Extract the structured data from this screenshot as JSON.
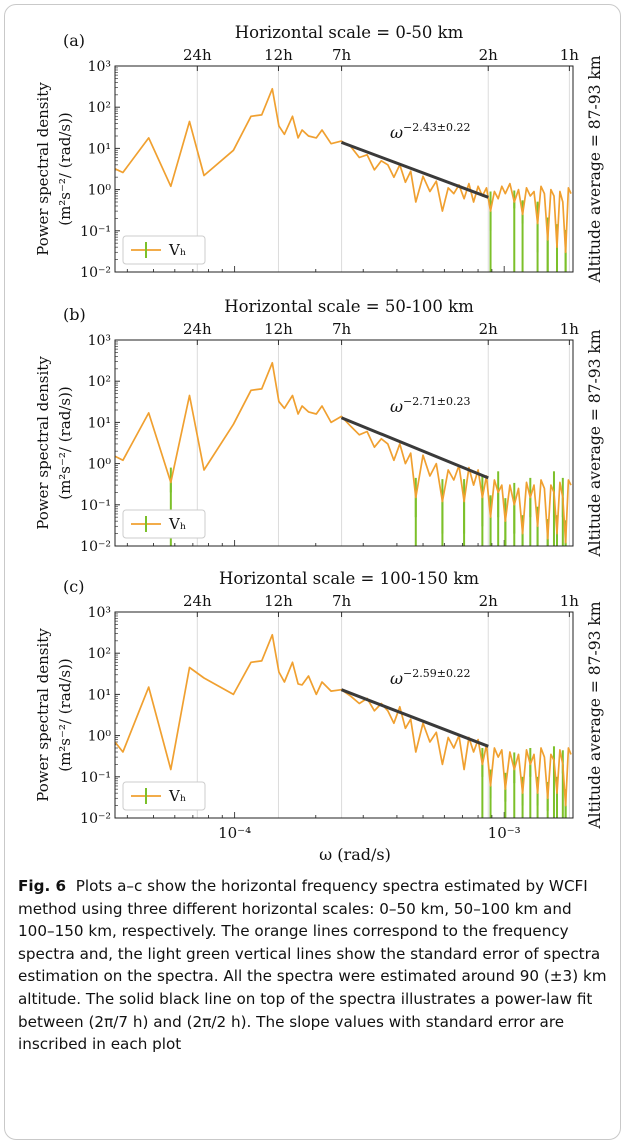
{
  "figure": {
    "caption_label": "Fig. 6",
    "caption_text": "Plots a–c show the horizontal frequency spectra estimated by WCFI method using three different horizontal scales: 0–50 km, 50–100 km and 100–150 km, respectively. The orange lines correspond to the frequency spectra and, the light green vertical lines show the standard error of spectra estimation on the spectra. All the spectra were estimated around 90 (±3) km altitude. The solid black line on top of the spectra illustrates a power-law fit between (2π/7 h) and (2π/2 h). The slope values with standard error are inscribed in each plot",
    "shared_xlabel": "ω (rad/s)",
    "colors": {
      "spectrum": "#f0a030",
      "error": "#7cc02a",
      "fit": "#3a3a3a",
      "grid": "#dcdcdc"
    }
  },
  "chart_data": [
    {
      "type": "line",
      "panel": "(a)",
      "title": "Horizontal scale = 0-50 km",
      "ylabel_line1": "Power spectral density",
      "ylabel_line2": "(m²s⁻²/ (rad/s))",
      "right_label": "Altitude average = 87-93 km",
      "top_ticks": [
        "24h",
        "12h",
        "7h",
        "2h",
        "1h"
      ],
      "top_tick_hours": [
        24,
        12,
        7,
        2,
        1
      ],
      "xscale": "log",
      "yscale": "log",
      "xlim": [
        3.6e-05,
        0.0018
      ],
      "ylim": [
        0.01,
        1000
      ],
      "y_tick_labels": [
        "10³",
        "10²",
        "10¹",
        "10⁰",
        "10⁻¹",
        "10⁻²"
      ],
      "legend": "Vₕ",
      "legend_loc": "lower left",
      "fit_label": "ω^(−2.43±0.22)",
      "fit_exp": "−2.43±0.22",
      "fit": {
        "x": [
          0.000249,
          0.000873
        ],
        "y": [
          14,
          0.65
        ]
      },
      "series": [
        {
          "name": "Vₕ",
          "x": [
            3.6e-05,
            3.85e-05,
            4.8e-05,
            5.8e-05,
            6.8e-05,
            7.7e-05,
            9.9e-05,
            0.000115,
            0.000126,
            0.000138,
            0.000146,
            0.000153,
            0.000164,
            0.000172,
            0.000178,
            0.000188,
            0.000201,
            0.000211,
            0.000228,
            0.000249,
            0.00027,
            0.00029,
            0.00031,
            0.00033,
            0.00035,
            0.00037,
            0.00039,
            0.00041,
            0.00043,
            0.00045,
            0.00047,
            0.0005,
            0.00053,
            0.00056,
            0.00059,
            0.00062,
            0.00065,
            0.00068,
            0.00071,
            0.00074,
            0.00077,
            0.0008,
            0.00083,
            0.00086,
            0.00089,
            0.00092,
            0.00095,
            0.00098,
            0.00101,
            0.00105,
            0.00109,
            0.00113,
            0.00117,
            0.00121,
            0.00125,
            0.00129,
            0.00133,
            0.00137,
            0.00141,
            0.00145,
            0.00149,
            0.00153,
            0.00157,
            0.00161,
            0.00165,
            0.00169,
            0.00173,
            0.00177
          ],
          "y": [
            3.2,
            2.6,
            18,
            1.2,
            45,
            2.2,
            9,
            60,
            65,
            280,
            35,
            22,
            60,
            18,
            28,
            20,
            18,
            28,
            13,
            15,
            11,
            6,
            7,
            3,
            5,
            4,
            2,
            4,
            1.5,
            2.8,
            0.5,
            2.1,
            0.9,
            1.6,
            0.3,
            1.1,
            0.8,
            1.3,
            0.6,
            1.4,
            0.5,
            1.2,
            0.7,
            1.1,
            0.3,
            0.9,
            0.6,
            1.2,
            0.8,
            1.4,
            0.5,
            1.0,
            0.25,
            1.1,
            0.7,
            0.9,
            0.15,
            1.2,
            0.8,
            0.06,
            1.0,
            0.7,
            0.04,
            0.9,
            0.5,
            0.03,
            1.1,
            0.8
          ],
          "err": [
            0,
            0,
            0,
            0,
            0,
            0,
            0,
            0,
            0,
            0,
            0,
            0,
            0,
            0,
            0,
            0,
            0,
            0,
            0,
            0,
            0,
            0,
            0,
            0,
            0,
            0,
            0,
            0,
            0,
            0,
            0,
            0,
            0,
            0,
            0,
            0,
            0,
            0,
            0,
            0,
            0,
            0,
            0,
            0,
            0.2,
            0,
            0,
            0,
            0,
            0,
            0.15,
            0,
            0.1,
            0,
            0,
            0,
            0.12,
            0,
            0,
            0.05,
            0,
            0,
            0.035,
            0,
            0,
            0.025,
            0,
            0
          ]
        }
      ]
    },
    {
      "type": "line",
      "panel": "(b)",
      "title": "Horizontal scale = 50-100 km",
      "ylabel_line1": "Power spectral density",
      "ylabel_line2": "(m²s⁻²/ (rad/s))",
      "right_label": "Altitude average = 87-93 km",
      "top_ticks": [
        "24h",
        "12h",
        "7h",
        "2h",
        "1h"
      ],
      "top_tick_hours": [
        24,
        12,
        7,
        2,
        1
      ],
      "xscale": "log",
      "yscale": "log",
      "xlim": [
        3.6e-05,
        0.0018
      ],
      "ylim": [
        0.01,
        1000
      ],
      "y_tick_labels": [
        "10³",
        "10²",
        "10¹",
        "10⁰",
        "10⁻¹",
        "10⁻²"
      ],
      "legend": "Vₕ",
      "legend_loc": "lower left",
      "fit_label": "ω^(−2.71±0.23)",
      "fit_exp": "−2.71±0.23",
      "fit": {
        "x": [
          0.000249,
          0.000873
        ],
        "y": [
          13,
          0.45
        ]
      },
      "series": [
        {
          "name": "Vₕ",
          "x": [
            3.6e-05,
            3.85e-05,
            4.8e-05,
            5.8e-05,
            6.8e-05,
            7.7e-05,
            9.9e-05,
            0.000115,
            0.000126,
            0.000138,
            0.000146,
            0.000153,
            0.000164,
            0.000172,
            0.000178,
            0.000188,
            0.000201,
            0.000211,
            0.000228,
            0.000249,
            0.00027,
            0.00029,
            0.00031,
            0.00033,
            0.00035,
            0.00037,
            0.00039,
            0.00041,
            0.00043,
            0.00045,
            0.00047,
            0.0005,
            0.00053,
            0.00056,
            0.00059,
            0.00062,
            0.00065,
            0.00068,
            0.00071,
            0.00074,
            0.00077,
            0.0008,
            0.00083,
            0.00086,
            0.00089,
            0.00092,
            0.00095,
            0.00098,
            0.00101,
            0.00105,
            0.00109,
            0.00113,
            0.00117,
            0.00121,
            0.00125,
            0.00129,
            0.00133,
            0.00137,
            0.00141,
            0.00145,
            0.00149,
            0.00153,
            0.00157,
            0.00161,
            0.00165,
            0.00169,
            0.00173,
            0.00177
          ],
          "y": [
            1.5,
            1.2,
            17,
            0.35,
            45,
            0.7,
            9,
            60,
            65,
            280,
            32,
            22,
            45,
            16,
            25,
            18,
            16,
            25,
            10,
            14,
            8,
            5,
            6,
            2.5,
            4,
            3,
            1.2,
            3,
            1.0,
            1.8,
            0.15,
            1.6,
            0.5,
            1.0,
            0.12,
            0.7,
            0.4,
            0.9,
            0.12,
            0.8,
            0.3,
            0.7,
            0.15,
            0.5,
            0.05,
            0.4,
            0.2,
            0.3,
            0.04,
            0.3,
            0.1,
            0.25,
            0.02,
            0.35,
            0.15,
            0.3,
            0.03,
            0.4,
            0.25,
            0.015,
            0.3,
            0.2,
            0.02,
            0.35,
            0.15,
            0.012,
            0.4,
            0.3
          ],
          "err": [
            0,
            0,
            0,
            0.15,
            0,
            0,
            0,
            0,
            0,
            0,
            0,
            0,
            0,
            0,
            0,
            0,
            0,
            0,
            0,
            0,
            0,
            0,
            0,
            0,
            0,
            0,
            0,
            0,
            0,
            0,
            0.1,
            0,
            0,
            0,
            0.1,
            0,
            0,
            0,
            0.1,
            0,
            0,
            0,
            0.12,
            0,
            0.04,
            0,
            0.15,
            0,
            0.035,
            0,
            0.08,
            0,
            0.012,
            0,
            0.1,
            0,
            0.02,
            0,
            0,
            0.01,
            0,
            0.15,
            0.012,
            0,
            0.1,
            0.01,
            0,
            0
          ]
        }
      ]
    },
    {
      "type": "line",
      "panel": "(c)",
      "title": "Horizontal scale = 100-150 km",
      "ylabel_line1": "Power spectral density",
      "ylabel_line2": "(m²s⁻²/ (rad/s))",
      "right_label": "Altitude average = 87-93 km",
      "top_ticks": [
        "24h",
        "12h",
        "7h",
        "2h",
        "1h"
      ],
      "top_tick_hours": [
        24,
        12,
        7,
        2,
        1
      ],
      "xscale": "log",
      "yscale": "log",
      "xlim": [
        3.6e-05,
        0.0018
      ],
      "ylim": [
        0.01,
        1000
      ],
      "y_tick_labels": [
        "10³",
        "10²",
        "10¹",
        "10⁰",
        "10⁻¹",
        "10⁻²"
      ],
      "x_tick_labels": [
        "10⁻⁴",
        "10⁻³"
      ],
      "x_tick_values": [
        0.0001,
        0.001
      ],
      "legend": "Vₕ",
      "legend_loc": "lower left",
      "fit_label": "ω^(−2.59±0.22)",
      "fit_exp": "−2.59±0.22",
      "fit": {
        "x": [
          0.000249,
          0.000873
        ],
        "y": [
          13,
          0.55
        ]
      },
      "series": [
        {
          "name": "Vₕ",
          "x": [
            3.6e-05,
            3.85e-05,
            4.8e-05,
            5.8e-05,
            6.8e-05,
            7.7e-05,
            9.9e-05,
            0.000115,
            0.000126,
            0.000138,
            0.000146,
            0.000153,
            0.000164,
            0.000172,
            0.000178,
            0.000188,
            0.000201,
            0.000211,
            0.000228,
            0.000249,
            0.00027,
            0.00029,
            0.00031,
            0.00033,
            0.00035,
            0.00037,
            0.00039,
            0.00041,
            0.00043,
            0.00045,
            0.00047,
            0.0005,
            0.00053,
            0.00056,
            0.00059,
            0.00062,
            0.00065,
            0.00068,
            0.00071,
            0.00074,
            0.00077,
            0.0008,
            0.00083,
            0.00086,
            0.00089,
            0.00092,
            0.00095,
            0.00098,
            0.00101,
            0.00105,
            0.00109,
            0.00113,
            0.00117,
            0.00121,
            0.00125,
            0.00129,
            0.00133,
            0.00137,
            0.00141,
            0.00145,
            0.00149,
            0.00153,
            0.00157,
            0.00161,
            0.00165,
            0.00169,
            0.00173,
            0.00177
          ],
          "y": [
            0.7,
            0.4,
            15,
            0.15,
            45,
            25,
            10,
            60,
            65,
            280,
            35,
            20,
            60,
            18,
            17,
            28,
            10,
            20,
            12,
            13,
            9,
            6,
            8,
            4,
            6,
            4,
            2,
            5,
            1.5,
            2.5,
            0.4,
            2.0,
            0.7,
            1.2,
            0.2,
            0.9,
            0.5,
            1.0,
            0.15,
            0.9,
            0.4,
            0.8,
            0.2,
            0.6,
            0.06,
            0.5,
            0.3,
            0.45,
            0.05,
            0.4,
            0.15,
            0.35,
            0.04,
            0.45,
            0.2,
            0.35,
            0.04,
            0.5,
            0.3,
            0.03,
            0.35,
            0.25,
            0.04,
            0.45,
            0.2,
            0.02,
            0.5,
            0.35
          ],
          "err": [
            0,
            0,
            0,
            0,
            0,
            0,
            0,
            0,
            0,
            0,
            0,
            0,
            0,
            0,
            0,
            0,
            0,
            0,
            0,
            0,
            0,
            0,
            0,
            0,
            0,
            0,
            0,
            0,
            0,
            0,
            0,
            0,
            0,
            0,
            0,
            0,
            0,
            0,
            0,
            0,
            0,
            0,
            0.1,
            0,
            0.03,
            0,
            0,
            0,
            0.025,
            0,
            0.08,
            0,
            0.02,
            0,
            0.1,
            0,
            0.02,
            0,
            0,
            0.015,
            0,
            0.1,
            0.02,
            0,
            0.08,
            0.01,
            0,
            0
          ]
        }
      ]
    }
  ]
}
